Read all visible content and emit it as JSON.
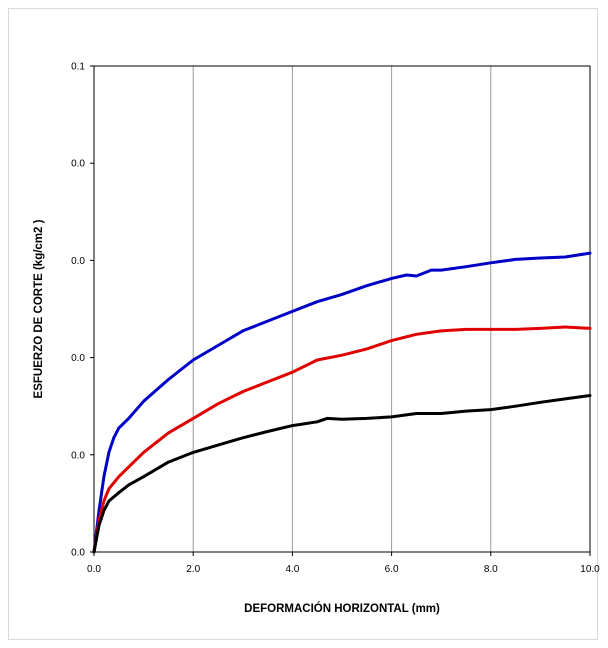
{
  "chart_data": {
    "type": "line",
    "title": "",
    "xlabel": "DEFORMACIÓN HORIZONTAL (mm)",
    "ylabel": "ESFUERZO DE CORTE (kg/cm2 )",
    "xlim": [
      0,
      10
    ],
    "ylim": [
      0,
      0.1
    ],
    "grid": "vertical",
    "legend": "none",
    "x_ticks": [
      "0.0",
      "2.0",
      "4.0",
      "6.0",
      "8.0",
      "10.0"
    ],
    "y_ticks": [
      "0.0",
      "0.0",
      "0.0",
      "0.0",
      "0.0",
      "0.1"
    ],
    "series": [
      {
        "color": "#0000c8",
        "points": [
          [
            0,
            0
          ],
          [
            0.1,
            0.0085
          ],
          [
            0.2,
            0.0155
          ],
          [
            0.3,
            0.0205
          ],
          [
            0.4,
            0.0235
          ],
          [
            0.5,
            0.0255
          ],
          [
            0.7,
            0.0275
          ],
          [
            1.0,
            0.031
          ],
          [
            1.5,
            0.0355
          ],
          [
            2.0,
            0.0395
          ],
          [
            2.5,
            0.0425
          ],
          [
            3.0,
            0.0455
          ],
          [
            3.5,
            0.0475
          ],
          [
            4.0,
            0.0495
          ],
          [
            4.5,
            0.0515
          ],
          [
            5.0,
            0.053
          ],
          [
            5.5,
            0.0548
          ],
          [
            6.0,
            0.0563
          ],
          [
            6.3,
            0.057
          ],
          [
            6.5,
            0.0568
          ],
          [
            6.8,
            0.058
          ],
          [
            7.0,
            0.058
          ],
          [
            7.5,
            0.0587
          ],
          [
            8.0,
            0.0595
          ],
          [
            8.5,
            0.0602
          ],
          [
            9.0,
            0.0605
          ],
          [
            9.5,
            0.0607
          ],
          [
            10.0,
            0.0615
          ]
        ]
      },
      {
        "color": "#e00000",
        "points": [
          [
            0,
            0
          ],
          [
            0.1,
            0.0065
          ],
          [
            0.2,
            0.0105
          ],
          [
            0.3,
            0.013
          ],
          [
            0.5,
            0.0155
          ],
          [
            0.7,
            0.0175
          ],
          [
            1.0,
            0.0205
          ],
          [
            1.5,
            0.0245
          ],
          [
            2.0,
            0.0275
          ],
          [
            2.5,
            0.0305
          ],
          [
            3.0,
            0.033
          ],
          [
            3.5,
            0.035
          ],
          [
            4.0,
            0.037
          ],
          [
            4.5,
            0.0395
          ],
          [
            5.0,
            0.0405
          ],
          [
            5.5,
            0.0418
          ],
          [
            6.0,
            0.0435
          ],
          [
            6.5,
            0.0448
          ],
          [
            7.0,
            0.0455
          ],
          [
            7.5,
            0.0458
          ],
          [
            8.0,
            0.0458
          ],
          [
            8.5,
            0.0458
          ],
          [
            9.0,
            0.046
          ],
          [
            9.5,
            0.0463
          ],
          [
            10.0,
            0.046
          ]
        ]
      },
      {
        "color": "#000000",
        "points": [
          [
            0,
            0
          ],
          [
            0.1,
            0.0055
          ],
          [
            0.2,
            0.0085
          ],
          [
            0.3,
            0.0105
          ],
          [
            0.5,
            0.0122
          ],
          [
            0.7,
            0.0138
          ],
          [
            1.0,
            0.0155
          ],
          [
            1.5,
            0.0185
          ],
          [
            2.0,
            0.0205
          ],
          [
            2.5,
            0.022
          ],
          [
            3.0,
            0.0235
          ],
          [
            3.5,
            0.0248
          ],
          [
            4.0,
            0.026
          ],
          [
            4.5,
            0.0268
          ],
          [
            4.7,
            0.0275
          ],
          [
            5.0,
            0.0273
          ],
          [
            5.5,
            0.0275
          ],
          [
            6.0,
            0.0278
          ],
          [
            6.5,
            0.0285
          ],
          [
            7.0,
            0.0285
          ],
          [
            7.5,
            0.029
          ],
          [
            8.0,
            0.0293
          ],
          [
            8.5,
            0.03
          ],
          [
            9.0,
            0.0308
          ],
          [
            9.5,
            0.0315
          ],
          [
            10.0,
            0.0322
          ]
        ]
      }
    ]
  }
}
